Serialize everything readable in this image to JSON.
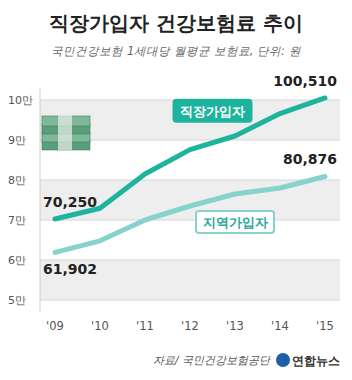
{
  "chart_data": {
    "type": "line",
    "title": "직장가입자 건강보험료 추이",
    "subtitle": "국민건강보험 1세대당 월평균 보험료, 단위: 원",
    "source": "자료/ 국민건강보험공단",
    "credit": "연합뉴스",
    "categories": [
      "'09",
      "'10",
      "'11",
      "'12",
      "'13",
      "'14",
      "'15"
    ],
    "series": [
      {
        "name": "직장가입자",
        "color": "#1eb39d",
        "values": [
          70250,
          72950,
          81500,
          87600,
          91000,
          96600,
          100510
        ],
        "value_labels": [
          "70,250",
          null,
          null,
          null,
          null,
          null,
          "100,510"
        ]
      },
      {
        "name": "지역가입자",
        "color": "#86d3cb",
        "values": [
          61902,
          64800,
          70000,
          73500,
          76500,
          78000,
          80876
        ],
        "value_labels": [
          "61,902",
          null,
          null,
          null,
          null,
          null,
          "80,876"
        ]
      }
    ],
    "ylim": [
      47000,
      103000
    ],
    "yticks": [
      {
        "value": 50000,
        "label": "5만"
      },
      {
        "value": 60000,
        "label": "6만"
      },
      {
        "value": 70000,
        "label": "7만"
      },
      {
        "value": 80000,
        "label": "8만"
      },
      {
        "value": 90000,
        "label": "9만"
      },
      {
        "value": 100000,
        "label": "10만"
      }
    ],
    "grid": true,
    "data_labels": true
  }
}
